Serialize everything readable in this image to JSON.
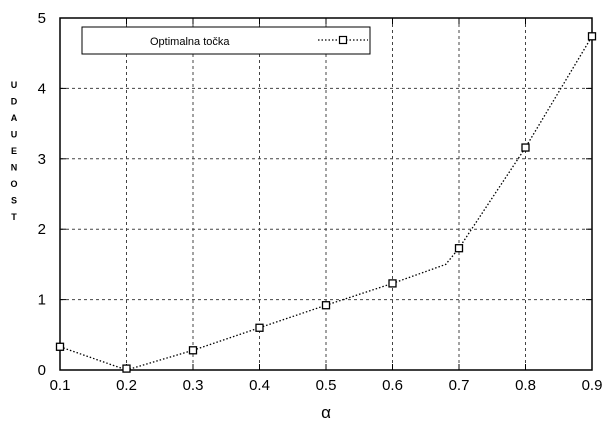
{
  "chart_data": {
    "type": "line",
    "title": "",
    "xlabel": "α",
    "ylabel": "UDAUENOST",
    "xlim": [
      0.1,
      0.9
    ],
    "ylim": [
      0,
      5
    ],
    "x_ticks": [
      "0.1",
      "0.2",
      "0.3",
      "0.4",
      "0.5",
      "0.6",
      "0.7",
      "0.8",
      "0.9"
    ],
    "y_ticks": [
      "0",
      "1",
      "2",
      "3",
      "4",
      "5"
    ],
    "grid": true,
    "legend_position": "top-left",
    "series": [
      {
        "name": "Optimalna točka",
        "x": [
          0.1,
          0.2,
          0.3,
          0.4,
          0.5,
          0.6,
          0.7,
          0.8,
          0.9
        ],
        "y": [
          0.33,
          0.02,
          0.28,
          0.6,
          0.92,
          1.23,
          1.73,
          3.16,
          4.74
        ],
        "line_path": [
          [
            0.1,
            0.33
          ],
          [
            0.2,
            0.0
          ],
          [
            0.3,
            0.28
          ],
          [
            0.4,
            0.6
          ],
          [
            0.5,
            0.92
          ],
          [
            0.6,
            1.23
          ],
          [
            0.68,
            1.5
          ],
          [
            0.7,
            1.73
          ],
          [
            0.8,
            3.16
          ],
          [
            0.9,
            4.74
          ]
        ],
        "color": "#000000",
        "marker": "square",
        "line_style": "dotted"
      }
    ]
  }
}
